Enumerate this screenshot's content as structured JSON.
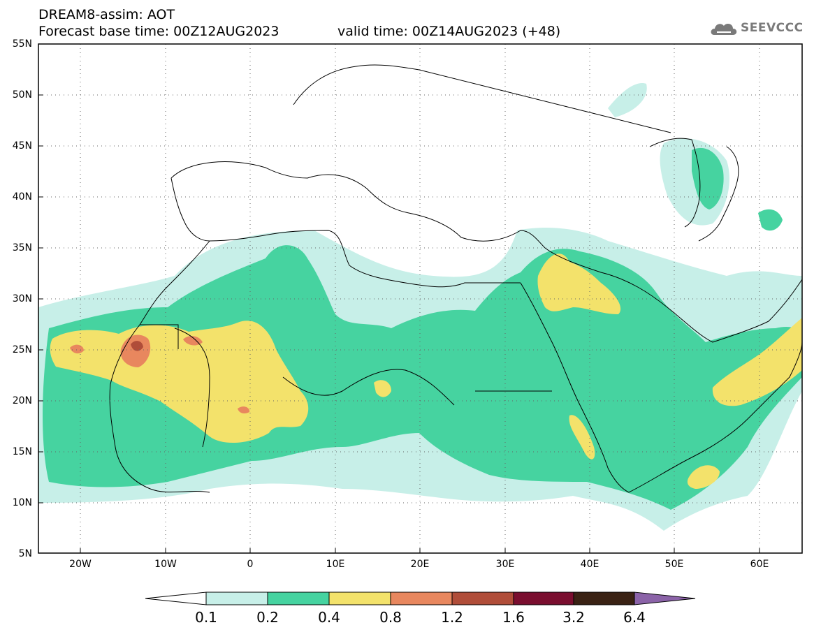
{
  "header": {
    "title_line1": "DREAM8-assim: AOT",
    "title_line2": "Forecast base time: 00Z12AUG2023",
    "valid_text": "valid time: 00Z14AUG2023 (+48)",
    "logo_text": "SEEVCCC"
  },
  "axes": {
    "y_labels": [
      "55N",
      "50N",
      "45N",
      "40N",
      "35N",
      "30N",
      "25N",
      "20N",
      "15N",
      "10N",
      "5N"
    ],
    "x_labels": [
      "20W",
      "10W",
      "0",
      "10E",
      "20E",
      "30E",
      "40E",
      "50E",
      "60E"
    ],
    "lon_range": [
      -25,
      65
    ],
    "lat_range": [
      5,
      55
    ]
  },
  "colorbar": {
    "labels": [
      "0.1",
      "0.2",
      "0.4",
      "0.8",
      "1.2",
      "1.6",
      "3.2",
      "6.4"
    ],
    "colors": [
      "#c7efe8",
      "#46d3a0",
      "#f3e26b",
      "#e8875e",
      "#b04d39",
      "#7a0e2f",
      "#3a2214",
      "#8b63a8"
    ]
  },
  "icons": {
    "logo": "cloud-icon"
  }
}
